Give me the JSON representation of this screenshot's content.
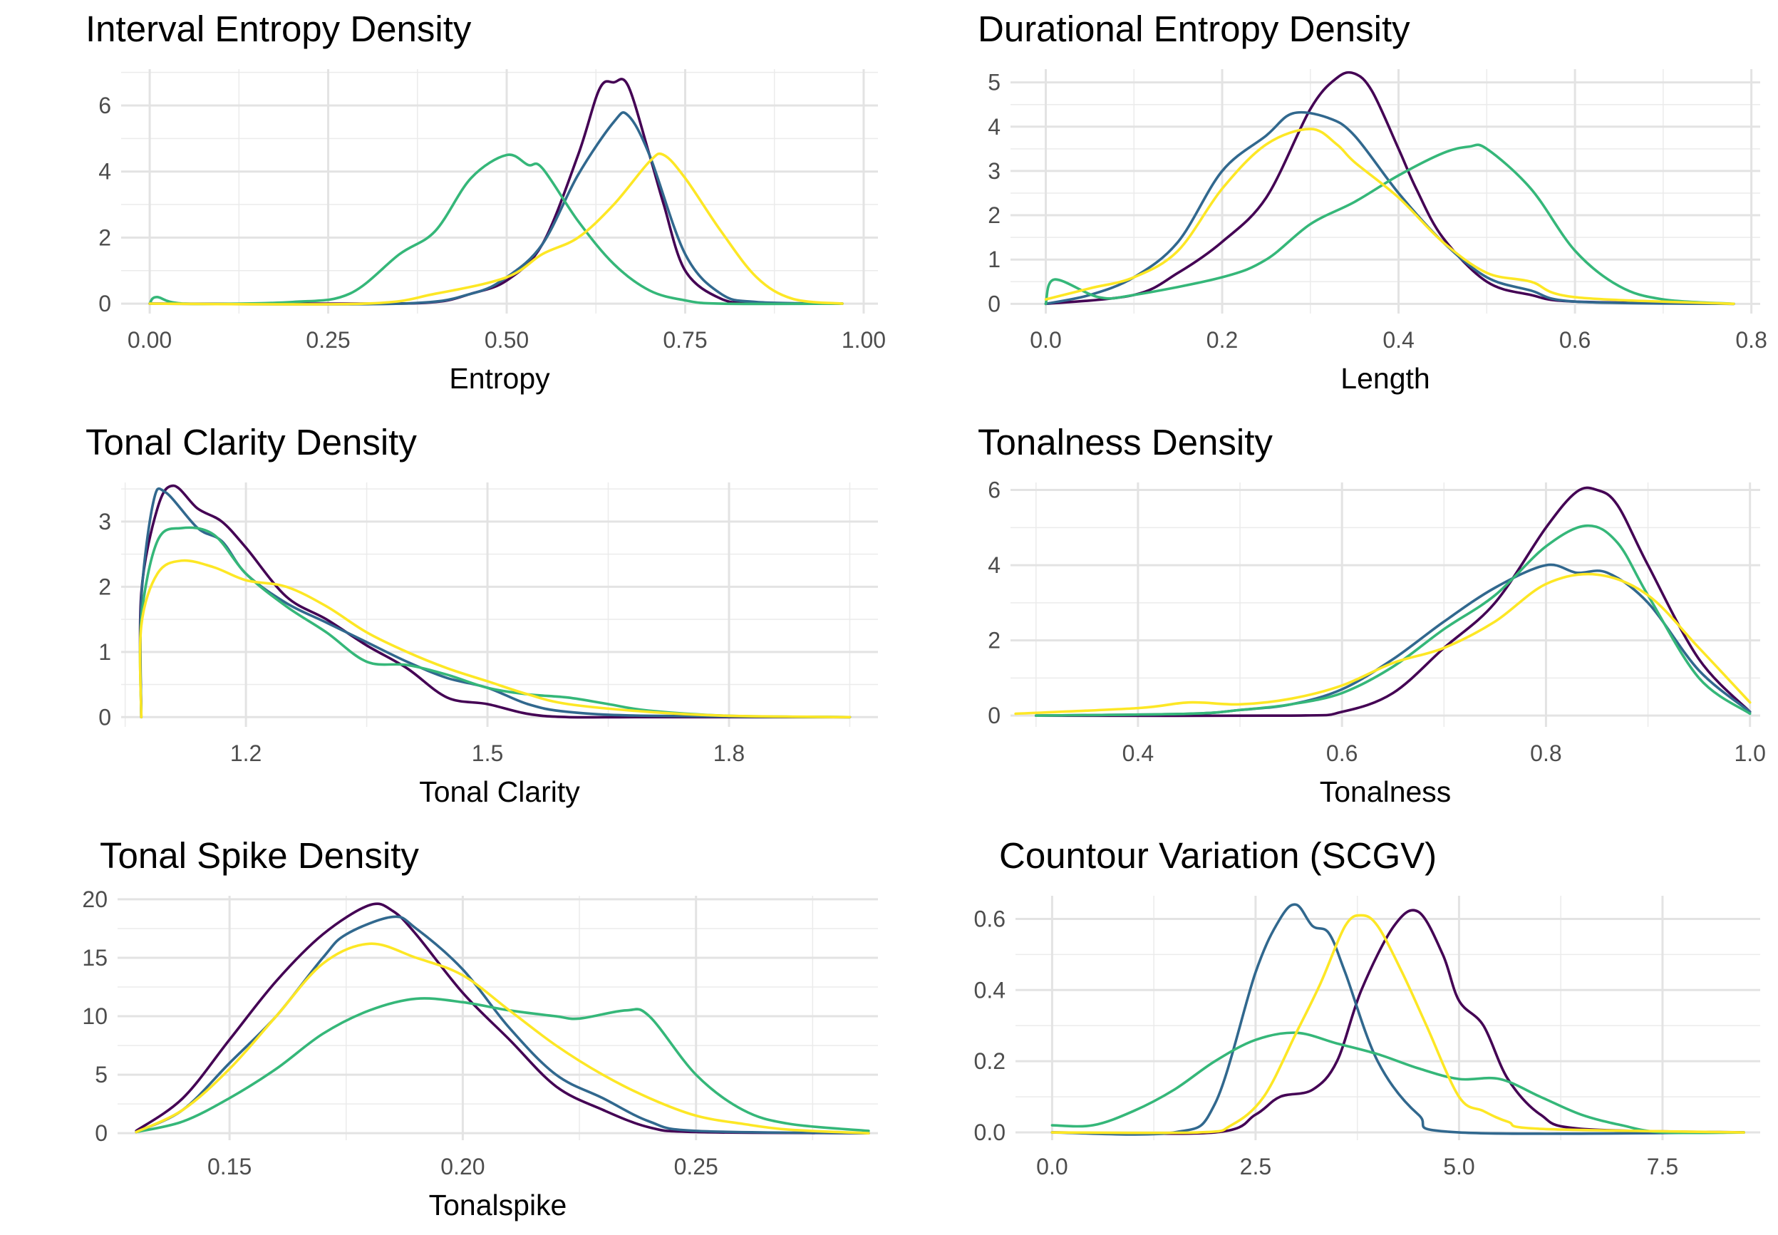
{
  "chart_data": [
    {
      "type": "line",
      "title": "Interval Entropy Density",
      "xlabel": "Entropy",
      "ylabel": "",
      "xlim": [
        -0.04,
        1.02
      ],
      "ylim": [
        -0.3,
        7.1
      ],
      "xticks": [
        0.0,
        0.25,
        0.5,
        0.75,
        1.0
      ],
      "xtick_labels": [
        "0.00",
        "0.25",
        "0.50",
        "0.75",
        "1.00"
      ],
      "yticks": [
        0,
        2,
        4,
        6
      ],
      "ytick_labels": [
        "0",
        "2",
        "4",
        "6"
      ],
      "grid": true,
      "series": [
        {
          "color": "#440154",
          "x": [
            0.0,
            0.3,
            0.4,
            0.45,
            0.5,
            0.55,
            0.6,
            0.63,
            0.65,
            0.67,
            0.7,
            0.72,
            0.75,
            0.8,
            0.85,
            0.97
          ],
          "y": [
            0.0,
            0.0,
            0.05,
            0.3,
            0.7,
            1.8,
            4.5,
            6.5,
            6.7,
            6.6,
            4.5,
            3.0,
            1.0,
            0.15,
            0.02,
            0.0
          ]
        },
        {
          "color": "#31688e",
          "x": [
            0.0,
            0.35,
            0.45,
            0.5,
            0.55,
            0.6,
            0.65,
            0.67,
            0.7,
            0.75,
            0.8,
            0.85,
            0.97
          ],
          "y": [
            0.0,
            0.0,
            0.3,
            0.8,
            1.8,
            3.9,
            5.5,
            5.7,
            4.5,
            1.5,
            0.3,
            0.05,
            0.0
          ]
        },
        {
          "color": "#35b779",
          "x": [
            0.0,
            0.01,
            0.05,
            0.2,
            0.28,
            0.35,
            0.4,
            0.45,
            0.5,
            0.53,
            0.55,
            0.6,
            0.65,
            0.7,
            0.75,
            0.8,
            0.97
          ],
          "y": [
            0.0,
            0.2,
            0.0,
            0.05,
            0.3,
            1.5,
            2.2,
            3.8,
            4.5,
            4.2,
            4.1,
            2.5,
            1.2,
            0.4,
            0.1,
            0.0,
            0.0
          ]
        },
        {
          "color": "#fde725",
          "x": [
            0.0,
            0.3,
            0.4,
            0.5,
            0.55,
            0.6,
            0.65,
            0.7,
            0.72,
            0.75,
            0.8,
            0.85,
            0.9,
            0.97
          ],
          "y": [
            0.0,
            0.0,
            0.3,
            0.8,
            1.5,
            2.0,
            3.0,
            4.3,
            4.5,
            3.8,
            2.2,
            0.8,
            0.15,
            0.0
          ]
        }
      ]
    },
    {
      "type": "line",
      "title": "Durational Entropy Density",
      "xlabel": "Length",
      "ylabel": "",
      "xlim": [
        -0.04,
        0.81
      ],
      "ylim": [
        -0.22,
        5.3
      ],
      "xticks": [
        0.0,
        0.2,
        0.4,
        0.6,
        0.8
      ],
      "xtick_labels": [
        "0.0",
        "0.2",
        "0.4",
        "0.6",
        "0.8"
      ],
      "yticks": [
        0,
        1,
        2,
        3,
        4,
        5
      ],
      "ytick_labels": [
        "0",
        "1",
        "2",
        "3",
        "4",
        "5"
      ],
      "grid": true,
      "series": [
        {
          "color": "#440154",
          "x": [
            0.0,
            0.1,
            0.15,
            0.2,
            0.25,
            0.3,
            0.33,
            0.35,
            0.37,
            0.4,
            0.42,
            0.45,
            0.5,
            0.55,
            0.6,
            0.78
          ],
          "y": [
            0.0,
            0.2,
            0.7,
            1.4,
            2.4,
            4.4,
            5.1,
            5.2,
            4.8,
            3.5,
            2.6,
            1.5,
            0.5,
            0.2,
            0.05,
            0.0
          ]
        },
        {
          "color": "#31688e",
          "x": [
            0.0,
            0.05,
            0.1,
            0.15,
            0.2,
            0.25,
            0.28,
            0.32,
            0.35,
            0.4,
            0.45,
            0.5,
            0.55,
            0.6,
            0.78
          ],
          "y": [
            0.0,
            0.2,
            0.6,
            1.4,
            3.0,
            3.8,
            4.3,
            4.2,
            3.8,
            2.5,
            1.4,
            0.6,
            0.3,
            0.05,
            0.0
          ]
        },
        {
          "color": "#35b779",
          "x": [
            0.0,
            0.01,
            0.06,
            0.1,
            0.2,
            0.25,
            0.3,
            0.35,
            0.4,
            0.45,
            0.48,
            0.5,
            0.55,
            0.6,
            0.65,
            0.7,
            0.78
          ],
          "y": [
            0.0,
            0.55,
            0.15,
            0.2,
            0.6,
            1.0,
            1.8,
            2.3,
            2.9,
            3.4,
            3.55,
            3.5,
            2.6,
            1.2,
            0.4,
            0.1,
            0.0
          ]
        },
        {
          "color": "#fde725",
          "x": [
            0.0,
            0.05,
            0.1,
            0.15,
            0.2,
            0.25,
            0.3,
            0.33,
            0.35,
            0.4,
            0.45,
            0.5,
            0.55,
            0.6,
            0.78
          ],
          "y": [
            0.1,
            0.35,
            0.6,
            1.2,
            2.6,
            3.6,
            3.95,
            3.6,
            3.2,
            2.4,
            1.4,
            0.7,
            0.5,
            0.15,
            0.0
          ]
        }
      ]
    },
    {
      "type": "line",
      "title": "Tonal Clarity Density",
      "xlabel": "Tonal Clarity",
      "ylabel": "",
      "xlim": [
        1.045,
        1.985
      ],
      "ylim": [
        -0.15,
        3.6
      ],
      "xticks": [
        1.2,
        1.5,
        1.8
      ],
      "xtick_labels": [
        "1.2",
        "1.5",
        "1.8"
      ],
      "yticks": [
        0,
        1,
        2,
        3
      ],
      "ytick_labels": [
        "0",
        "1",
        "2",
        "3"
      ],
      "grid": true,
      "series": [
        {
          "color": "#440154",
          "x": [
            1.07,
            1.07,
            1.09,
            1.11,
            1.14,
            1.17,
            1.2,
            1.25,
            1.3,
            1.35,
            1.4,
            1.45,
            1.5,
            1.55,
            1.6,
            1.7,
            1.95
          ],
          "y": [
            0.0,
            1.9,
            3.2,
            3.55,
            3.2,
            3.0,
            2.6,
            1.85,
            1.5,
            1.1,
            0.75,
            0.3,
            0.2,
            0.05,
            0.0,
            0.0,
            0.0
          ]
        },
        {
          "color": "#31688e",
          "x": [
            1.07,
            1.07,
            1.085,
            1.1,
            1.14,
            1.17,
            1.2,
            1.25,
            1.3,
            1.35,
            1.4,
            1.45,
            1.5,
            1.55,
            1.6,
            1.7,
            1.95
          ],
          "y": [
            0.0,
            1.8,
            3.3,
            3.45,
            2.9,
            2.7,
            2.2,
            1.75,
            1.45,
            1.15,
            0.85,
            0.6,
            0.45,
            0.2,
            0.08,
            0.02,
            0.0
          ]
        },
        {
          "color": "#35b779",
          "x": [
            1.07,
            1.07,
            1.09,
            1.12,
            1.16,
            1.2,
            1.25,
            1.3,
            1.35,
            1.4,
            1.45,
            1.5,
            1.55,
            1.6,
            1.65,
            1.7,
            1.8,
            1.95
          ],
          "y": [
            0.0,
            1.5,
            2.7,
            2.9,
            2.8,
            2.2,
            1.7,
            1.3,
            0.85,
            0.8,
            0.65,
            0.45,
            0.35,
            0.3,
            0.2,
            0.1,
            0.02,
            0.0
          ]
        },
        {
          "color": "#fde725",
          "x": [
            1.07,
            1.07,
            1.09,
            1.12,
            1.16,
            1.2,
            1.25,
            1.3,
            1.35,
            1.4,
            1.45,
            1.5,
            1.55,
            1.6,
            1.7,
            1.8,
            1.95
          ],
          "y": [
            0.0,
            1.4,
            2.2,
            2.4,
            2.3,
            2.1,
            2.0,
            1.7,
            1.3,
            1.0,
            0.75,
            0.55,
            0.35,
            0.2,
            0.08,
            0.02,
            0.0
          ]
        }
      ]
    },
    {
      "type": "line",
      "title": "Tonalness Density",
      "xlabel": "Tonalness",
      "ylabel": "",
      "xlim": [
        0.275,
        1.01
      ],
      "ylim": [
        -0.3,
        6.2
      ],
      "xticks": [
        0.4,
        0.6,
        0.8,
        1.0
      ],
      "xtick_labels": [
        "0.4",
        "0.6",
        "0.8",
        "1.0"
      ],
      "yticks": [
        0,
        2,
        4,
        6
      ],
      "ytick_labels": [
        "0",
        "2",
        "4",
        "6"
      ],
      "grid": true,
      "series": [
        {
          "color": "#440154",
          "x": [
            0.3,
            0.55,
            0.6,
            0.65,
            0.7,
            0.75,
            0.8,
            0.83,
            0.85,
            0.87,
            0.9,
            0.95,
            1.0
          ],
          "y": [
            0.0,
            0.0,
            0.1,
            0.6,
            1.8,
            3.0,
            5.0,
            5.95,
            6.0,
            5.6,
            4.0,
            1.5,
            0.1
          ]
        },
        {
          "color": "#31688e",
          "x": [
            0.3,
            0.45,
            0.5,
            0.55,
            0.6,
            0.65,
            0.7,
            0.75,
            0.8,
            0.83,
            0.86,
            0.9,
            0.95,
            1.0
          ],
          "y": [
            0.0,
            0.05,
            0.15,
            0.3,
            0.7,
            1.5,
            2.5,
            3.4,
            4.0,
            3.8,
            3.8,
            3.0,
            1.2,
            0.1
          ]
        },
        {
          "color": "#35b779",
          "x": [
            0.3,
            0.45,
            0.5,
            0.55,
            0.6,
            0.65,
            0.7,
            0.75,
            0.8,
            0.84,
            0.87,
            0.9,
            0.95,
            1.0
          ],
          "y": [
            0.0,
            0.05,
            0.15,
            0.3,
            0.6,
            1.3,
            2.3,
            3.2,
            4.5,
            5.05,
            4.6,
            3.2,
            1.0,
            0.05
          ]
        },
        {
          "color": "#fde725",
          "x": [
            0.28,
            0.4,
            0.45,
            0.5,
            0.55,
            0.6,
            0.65,
            0.7,
            0.75,
            0.8,
            0.85,
            0.9,
            0.95,
            1.0
          ],
          "y": [
            0.05,
            0.2,
            0.35,
            0.3,
            0.45,
            0.8,
            1.4,
            1.8,
            2.5,
            3.5,
            3.75,
            3.2,
            1.8,
            0.35
          ]
        }
      ]
    },
    {
      "type": "line",
      "title": "Tonal Spike Density",
      "xlabel": "Tonalspike",
      "ylabel": "",
      "xlim": [
        0.126,
        0.289
      ],
      "ylim": [
        -0.6,
        20.3
      ],
      "xticks": [
        0.15,
        0.2,
        0.25
      ],
      "xtick_labels": [
        "0.15",
        "0.20",
        "0.25"
      ],
      "yticks": [
        0,
        5,
        10,
        15,
        20
      ],
      "ytick_labels": [
        "0",
        "5",
        "10",
        "15",
        "20"
      ],
      "grid": true,
      "series": [
        {
          "color": "#440154",
          "x": [
            0.13,
            0.14,
            0.15,
            0.16,
            0.17,
            0.18,
            0.185,
            0.19,
            0.2,
            0.21,
            0.22,
            0.23,
            0.24,
            0.25,
            0.287
          ],
          "y": [
            0.2,
            3.0,
            8.0,
            13.0,
            17.0,
            19.5,
            19.0,
            17.0,
            12.0,
            8.0,
            4.0,
            2.0,
            0.5,
            0.1,
            0.0
          ]
        },
        {
          "color": "#31688e",
          "x": [
            0.13,
            0.14,
            0.15,
            0.16,
            0.17,
            0.175,
            0.185,
            0.19,
            0.2,
            0.21,
            0.22,
            0.23,
            0.24,
            0.25,
            0.287
          ],
          "y": [
            0.1,
            2.0,
            6.0,
            10.0,
            15.0,
            17.0,
            18.5,
            17.5,
            14.0,
            9.0,
            5.0,
            3.0,
            1.0,
            0.2,
            0.0
          ]
        },
        {
          "color": "#35b779",
          "x": [
            0.13,
            0.14,
            0.15,
            0.16,
            0.17,
            0.18,
            0.19,
            0.2,
            0.21,
            0.22,
            0.225,
            0.235,
            0.24,
            0.25,
            0.26,
            0.27,
            0.287
          ],
          "y": [
            0.1,
            1.0,
            3.0,
            5.5,
            8.5,
            10.5,
            11.5,
            11.2,
            10.5,
            10.0,
            9.8,
            10.5,
            10.0,
            5.0,
            2.0,
            0.8,
            0.2
          ]
        },
        {
          "color": "#fde725",
          "x": [
            0.13,
            0.14,
            0.15,
            0.16,
            0.17,
            0.18,
            0.19,
            0.2,
            0.21,
            0.22,
            0.23,
            0.24,
            0.25,
            0.26,
            0.27,
            0.287
          ],
          "y": [
            0.1,
            2.0,
            5.5,
            10.0,
            14.5,
            16.2,
            15.0,
            13.5,
            10.5,
            7.5,
            5.0,
            3.0,
            1.5,
            0.8,
            0.3,
            0.0
          ]
        }
      ]
    },
    {
      "type": "line",
      "title": "Countour Variation (SCGV)",
      "xlabel": "",
      "ylabel": "",
      "xlim": [
        -0.45,
        8.7
      ],
      "ylim": [
        -0.022,
        0.665
      ],
      "xticks": [
        0.0,
        2.5,
        5.0,
        7.5
      ],
      "xtick_labels": [
        "0.0",
        "2.5",
        "5.0",
        "7.5"
      ],
      "yticks": [
        0.0,
        0.2,
        0.4,
        0.6
      ],
      "ytick_labels": [
        "0.0",
        "0.2",
        "0.4",
        "0.6"
      ],
      "grid": true,
      "series": [
        {
          "color": "#440154",
          "x": [
            0.0,
            2.0,
            2.5,
            2.8,
            3.2,
            3.5,
            3.8,
            4.2,
            4.5,
            4.8,
            5.0,
            5.3,
            5.6,
            6.0,
            6.5,
            8.5
          ],
          "y": [
            0.0,
            0.0,
            0.05,
            0.1,
            0.12,
            0.2,
            0.4,
            0.58,
            0.62,
            0.5,
            0.37,
            0.3,
            0.15,
            0.05,
            0.01,
            0.0
          ]
        },
        {
          "color": "#31688e",
          "x": [
            0.0,
            1.5,
            2.0,
            2.5,
            2.8,
            3.0,
            3.2,
            3.4,
            3.6,
            4.0,
            4.5,
            5.0,
            8.5
          ],
          "y": [
            0.0,
            0.0,
            0.08,
            0.45,
            0.6,
            0.64,
            0.58,
            0.56,
            0.45,
            0.2,
            0.05,
            0.0,
            0.0
          ]
        },
        {
          "color": "#35b779",
          "x": [
            0.0,
            0.5,
            1.0,
            1.5,
            2.0,
            2.5,
            3.0,
            3.5,
            4.0,
            4.5,
            5.0,
            5.5,
            6.0,
            6.5,
            7.0,
            7.5,
            8.5
          ],
          "y": [
            0.02,
            0.02,
            0.06,
            0.12,
            0.2,
            0.26,
            0.28,
            0.25,
            0.22,
            0.18,
            0.15,
            0.15,
            0.1,
            0.05,
            0.02,
            0.0,
            0.0
          ]
        },
        {
          "color": "#fde725",
          "x": [
            0.0,
            1.8,
            2.2,
            2.6,
            3.0,
            3.3,
            3.6,
            3.8,
            4.0,
            4.3,
            4.6,
            5.0,
            5.3,
            5.6,
            6.0,
            8.5
          ],
          "y": [
            0.0,
            0.0,
            0.02,
            0.1,
            0.28,
            0.42,
            0.58,
            0.61,
            0.58,
            0.45,
            0.3,
            0.1,
            0.06,
            0.03,
            0.01,
            0.0
          ]
        }
      ]
    }
  ]
}
